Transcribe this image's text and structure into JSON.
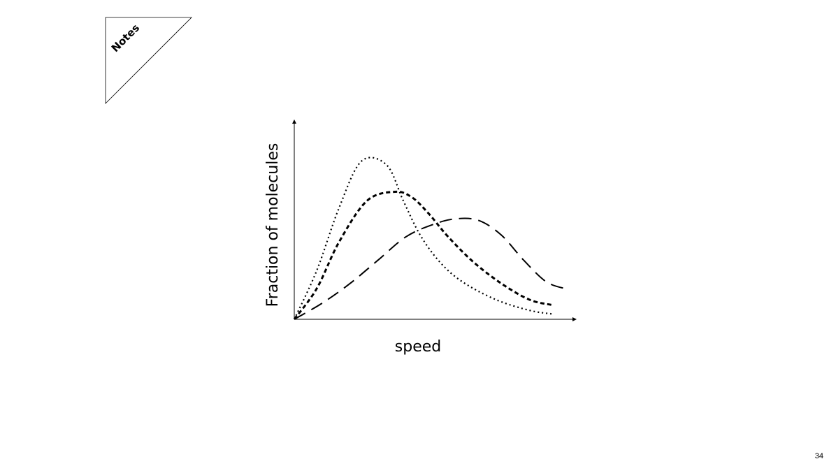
{
  "notes_tab": {
    "label": "Notes"
  },
  "page_number": "34",
  "chart_data": {
    "type": "line",
    "title": "",
    "xlabel": "speed",
    "ylabel": "Fraction of molecules",
    "xlim": [
      0,
      10
    ],
    "ylim": [
      0,
      1
    ],
    "grid": false,
    "axis_ticks": false,
    "series": [
      {
        "line_style": "dotted",
        "color": "#000000",
        "x": [
          0,
          0.8,
          1.6,
          2.4,
          3.3,
          3.9,
          4.5,
          5.2,
          6.0,
          7.2,
          8.4,
          9.2
        ],
        "values": [
          0,
          0.27,
          0.62,
          0.88,
          0.86,
          0.66,
          0.47,
          0.32,
          0.21,
          0.11,
          0.05,
          0.03
        ]
      },
      {
        "line_style": "dashed-short",
        "color": "#000000",
        "x": [
          0,
          0.8,
          1.6,
          2.6,
          3.6,
          4.2,
          4.8,
          5.5,
          6.4,
          7.4,
          8.4,
          9.2
        ],
        "values": [
          0,
          0.17,
          0.43,
          0.66,
          0.71,
          0.68,
          0.59,
          0.46,
          0.32,
          0.2,
          0.11,
          0.08
        ]
      },
      {
        "line_style": "dashed-long",
        "color": "#000000",
        "x": [
          0,
          1.0,
          2.0,
          3.0,
          4.0,
          5.0,
          5.8,
          6.6,
          7.4,
          8.2,
          9.0,
          9.7
        ],
        "values": [
          0,
          0.09,
          0.2,
          0.33,
          0.46,
          0.53,
          0.56,
          0.55,
          0.47,
          0.33,
          0.21,
          0.17
        ]
      }
    ]
  }
}
